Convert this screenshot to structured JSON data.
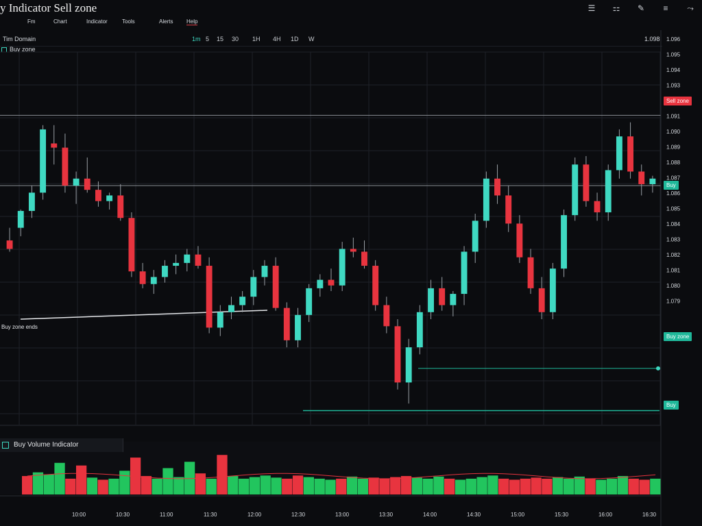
{
  "app": {
    "title": "y Indicator Sell zone"
  },
  "menu": [
    "Fm",
    "Chart",
    "Indicator",
    "Tools",
    "Alerts",
    "Help"
  ],
  "toolbar": {
    "symbol": "Tim Domain",
    "chips": [
      "1m",
      "5",
      "15",
      "30",
      "1H",
      "4H",
      "1D",
      "W"
    ],
    "price_label": "1.098"
  },
  "pane": {
    "label": "Buy zone"
  },
  "volume_pane": {
    "title": "Buy Volume Indicator"
  },
  "zones": {
    "buy_zone_label": "Buy zone ends",
    "sell_badge": "Sell zone",
    "buy_badge_1": "Buy",
    "buy_badge_2": "Buy zone",
    "buy_badge_3": "Buy"
  },
  "colors": {
    "bull": "#3fd9c2",
    "bear": "#e8343f",
    "vol_up": "#22c55e",
    "vol_down": "#e8343f",
    "grid": "#1f2228",
    "bg": "#0b0c0f"
  },
  "icons": [
    "menu-icon",
    "sliders-icon",
    "pen-icon",
    "list-icon",
    "chart-icon"
  ],
  "chart_data": {
    "type": "candlestick",
    "price_axis_ticks": [
      "1.096",
      "1.095",
      "1.094",
      "1.093",
      "1.092",
      "1.091",
      "1.090",
      "1.089",
      "1.088",
      "1.087",
      "1.086",
      "1.085",
      "1.084",
      "1.083",
      "1.082",
      "1.081",
      "1.080",
      "1.079"
    ],
    "time_axis_ticks": [
      "10:00",
      "10:30",
      "11:00",
      "11:30",
      "12:00",
      "12:30",
      "13:00",
      "13:30",
      "14:00",
      "14:30",
      "15:00",
      "15:30",
      "16:00",
      "16:30"
    ],
    "candles": [
      [
        1.0846,
        1.0855,
        1.0838,
        1.084
      ],
      [
        1.0855,
        1.0868,
        1.0849,
        1.0867
      ],
      [
        1.0867,
        1.0885,
        1.0862,
        1.088
      ],
      [
        1.088,
        1.0928,
        1.0875,
        1.0925
      ],
      [
        1.0915,
        1.0928,
        1.09,
        1.0912
      ],
      [
        1.0912,
        1.0922,
        1.088,
        1.0885
      ],
      [
        1.0885,
        1.0895,
        1.0872,
        1.089
      ],
      [
        1.089,
        1.0905,
        1.088,
        1.0882
      ],
      [
        1.0882,
        1.0888,
        1.087,
        1.0874
      ],
      [
        1.0874,
        1.088,
        1.0868,
        1.0878
      ],
      [
        1.0878,
        1.0886,
        1.086,
        1.0862
      ],
      [
        1.0862,
        1.0866,
        1.082,
        1.0824
      ],
      [
        1.0824,
        1.083,
        1.0812,
        1.0815
      ],
      [
        1.0815,
        1.0825,
        1.0808,
        1.082
      ],
      [
        1.082,
        1.0832,
        1.0816,
        1.0828
      ],
      [
        1.0828,
        1.0836,
        1.0822,
        1.083
      ],
      [
        1.083,
        1.084,
        1.0824,
        1.0836
      ],
      [
        1.0836,
        1.0842,
        1.0826,
        1.0828
      ],
      [
        1.0828,
        1.0834,
        1.078,
        1.0784
      ],
      [
        1.0784,
        1.08,
        1.0778,
        1.0795
      ],
      [
        1.0795,
        1.0806,
        1.079,
        1.08
      ],
      [
        1.08,
        1.081,
        1.0795,
        1.0806
      ],
      [
        1.0806,
        1.0825,
        1.08,
        1.082
      ],
      [
        1.082,
        1.0832,
        1.0814,
        1.0828
      ],
      [
        1.0828,
        1.0834,
        1.0796,
        1.0798
      ],
      [
        1.0798,
        1.0802,
        1.077,
        1.0775
      ],
      [
        1.0775,
        1.0798,
        1.077,
        1.0793
      ],
      [
        1.0793,
        1.0815,
        1.0788,
        1.0812
      ],
      [
        1.0812,
        1.0822,
        1.0806,
        1.0818
      ],
      [
        1.0818,
        1.0826,
        1.081,
        1.0814
      ],
      [
        1.0814,
        1.0845,
        1.081,
        1.084
      ],
      [
        1.084,
        1.0848,
        1.0834,
        1.0838
      ],
      [
        1.0838,
        1.0846,
        1.0826,
        1.0828
      ],
      [
        1.0828,
        1.0832,
        1.0796,
        1.08
      ],
      [
        1.08,
        1.0806,
        1.078,
        1.0785
      ],
      [
        1.0785,
        1.079,
        1.074,
        1.0745
      ],
      [
        1.0745,
        1.0776,
        1.073,
        1.077
      ],
      [
        1.077,
        1.08,
        1.0765,
        1.0795
      ],
      [
        1.0795,
        1.0818,
        1.079,
        1.0812
      ],
      [
        1.0812,
        1.082,
        1.0796,
        1.08
      ],
      [
        1.08,
        1.081,
        1.0792,
        1.0808
      ],
      [
        1.0808,
        1.0842,
        1.08,
        1.0838
      ],
      [
        1.0838,
        1.0865,
        1.083,
        1.086
      ],
      [
        1.086,
        1.0895,
        1.0855,
        1.089
      ],
      [
        1.089,
        1.09,
        1.0872,
        1.0878
      ],
      [
        1.0878,
        1.0885,
        1.0852,
        1.0858
      ],
      [
        1.0858,
        1.0864,
        1.083,
        1.0834
      ],
      [
        1.0834,
        1.084,
        1.0808,
        1.0812
      ],
      [
        1.0812,
        1.082,
        1.079,
        1.0795
      ],
      [
        1.0795,
        1.083,
        1.079,
        1.0826
      ],
      [
        1.0826,
        1.0868,
        1.082,
        1.0864
      ],
      [
        1.0864,
        1.0905,
        1.086,
        1.09
      ],
      [
        1.09,
        1.0906,
        1.087,
        1.0874
      ],
      [
        1.0874,
        1.088,
        1.086,
        1.0866
      ],
      [
        1.0866,
        1.09,
        1.086,
        1.0896
      ],
      [
        1.0896,
        1.0925,
        1.089,
        1.092
      ],
      [
        1.092,
        1.093,
        1.089,
        1.0895
      ],
      [
        1.0895,
        1.09,
        1.0878,
        1.0886
      ],
      [
        1.0886,
        1.0892,
        1.088,
        1.089
      ]
    ],
    "volume": [
      [
        0.35,
        "down"
      ],
      [
        0.42,
        "up"
      ],
      [
        0.38,
        "up"
      ],
      [
        0.6,
        "up"
      ],
      [
        0.3,
        "down"
      ],
      [
        0.55,
        "down"
      ],
      [
        0.32,
        "up"
      ],
      [
        0.28,
        "down"
      ],
      [
        0.3,
        "up"
      ],
      [
        0.45,
        "up"
      ],
      [
        0.7,
        "down"
      ],
      [
        0.35,
        "down"
      ],
      [
        0.3,
        "up"
      ],
      [
        0.5,
        "up"
      ],
      [
        0.33,
        "up"
      ],
      [
        0.62,
        "up"
      ],
      [
        0.4,
        "down"
      ],
      [
        0.3,
        "up"
      ],
      [
        0.75,
        "down"
      ],
      [
        0.35,
        "up"
      ],
      [
        0.3,
        "up"
      ],
      [
        0.33,
        "up"
      ],
      [
        0.36,
        "up"
      ],
      [
        0.32,
        "up"
      ],
      [
        0.3,
        "down"
      ],
      [
        0.36,
        "down"
      ],
      [
        0.33,
        "up"
      ],
      [
        0.3,
        "up"
      ],
      [
        0.28,
        "up"
      ],
      [
        0.3,
        "down"
      ],
      [
        0.34,
        "up"
      ],
      [
        0.3,
        "up"
      ],
      [
        0.32,
        "down"
      ],
      [
        0.3,
        "down"
      ],
      [
        0.33,
        "down"
      ],
      [
        0.35,
        "down"
      ],
      [
        0.32,
        "up"
      ],
      [
        0.3,
        "up"
      ],
      [
        0.34,
        "up"
      ],
      [
        0.3,
        "down"
      ],
      [
        0.28,
        "up"
      ],
      [
        0.3,
        "up"
      ],
      [
        0.33,
        "up"
      ],
      [
        0.36,
        "up"
      ],
      [
        0.3,
        "down"
      ],
      [
        0.28,
        "down"
      ],
      [
        0.3,
        "down"
      ],
      [
        0.32,
        "down"
      ],
      [
        0.3,
        "down"
      ],
      [
        0.33,
        "up"
      ],
      [
        0.3,
        "up"
      ],
      [
        0.34,
        "up"
      ],
      [
        0.3,
        "down"
      ],
      [
        0.28,
        "up"
      ],
      [
        0.3,
        "up"
      ],
      [
        0.35,
        "up"
      ],
      [
        0.3,
        "down"
      ],
      [
        0.28,
        "down"
      ],
      [
        0.3,
        "up"
      ]
    ],
    "horizontal_levels": [
      1.0935,
      1.0885
    ],
    "buy_zone_levels": [
      1.0755,
      1.0725
    ]
  }
}
